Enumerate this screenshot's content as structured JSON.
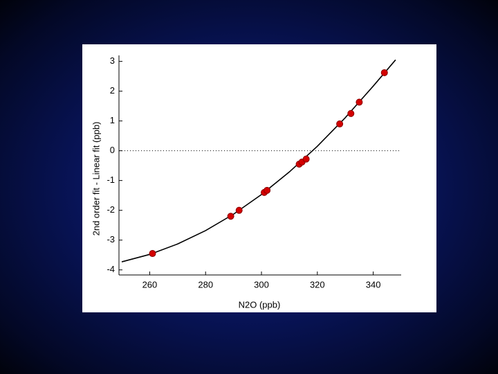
{
  "chart_data": {
    "type": "scatter",
    "x_label": "N2O (ppb)",
    "y_label": "2nd order fit - Linear fit (ppb)",
    "xlim": [
      249,
      350
    ],
    "ylim": [
      -4.17,
      3.2
    ],
    "xticks": [
      260,
      280,
      300,
      320,
      340
    ],
    "yticks": [
      -4,
      -3,
      -2,
      -1,
      0,
      1,
      2,
      3
    ],
    "hline": 0,
    "series": [
      {
        "mode": "line",
        "color": "#000000",
        "x": [
          250,
          260,
          270,
          280,
          290,
          300,
          310,
          320,
          330,
          340,
          348
        ],
        "values": [
          -3.73,
          -3.48,
          -3.13,
          -2.68,
          -2.13,
          -1.47,
          -0.71,
          0.15,
          1.11,
          2.17,
          3.05
        ]
      },
      {
        "mode": "markers",
        "color": "#d40000",
        "x": [
          261,
          289,
          292,
          301,
          302,
          313.5,
          314.5,
          316,
          328,
          332,
          335,
          344
        ],
        "values": [
          -3.45,
          -2.2,
          -2.0,
          -1.4,
          -1.33,
          -0.45,
          -0.38,
          -0.28,
          0.9,
          1.25,
          1.63,
          2.62
        ]
      }
    ]
  }
}
